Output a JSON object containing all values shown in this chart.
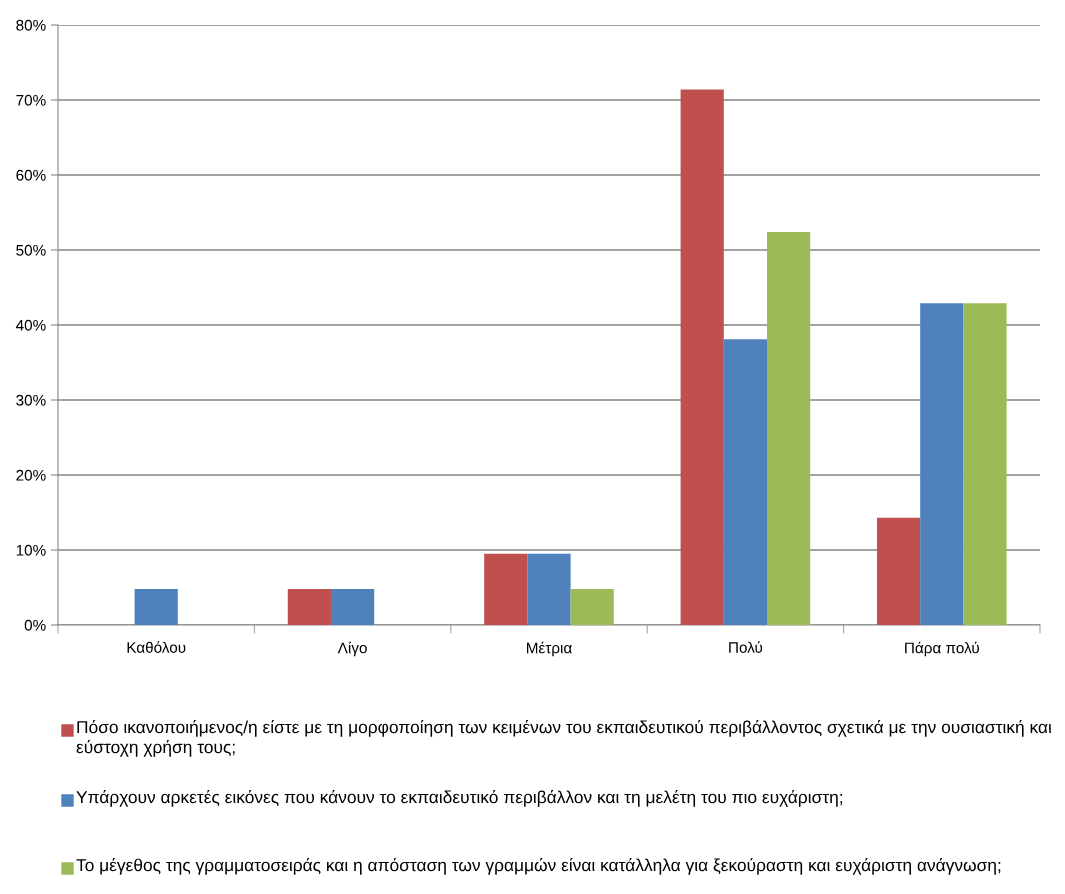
{
  "chart_data": {
    "type": "bar",
    "categories": [
      "Καθόλου",
      "Λίγο",
      "Μέτρια",
      "Πολύ",
      "Πάρα πολύ"
    ],
    "series": [
      {
        "name": "Πόσο ικανοποιήμενος/η είστε με τη μορφοποίηση των κειμένων του εκπαιδευτικού περιβάλλοντος σχετικά με την ουσιαστική και εύστοχη χρήση τους;",
        "color": "#c0504d",
        "values": [
          0,
          4.8,
          9.5,
          71.4,
          14.3
        ]
      },
      {
        "name": "Υπάρχουν αρκετές εικόνες που κάνουν το εκπαιδευτικό περιβάλλον και τη μελέτη του πιο ευχάριστη;",
        "color": "#4f81bd",
        "values": [
          4.8,
          4.8,
          9.5,
          38.1,
          42.9
        ]
      },
      {
        "name": "Το μέγεθος της γραμματοσειράς και η απόσταση των γραμμών είναι κατάλληλα για ξεκούραστη και ευχάριστη ανάγνωση;",
        "color": "#9bbb59",
        "values": [
          0,
          0,
          4.8,
          52.4,
          42.9
        ]
      }
    ],
    "ylim": [
      0,
      80
    ],
    "yticks": [
      {
        "value": 0,
        "label": "0%"
      },
      {
        "value": 10,
        "label": "10%"
      },
      {
        "value": 20,
        "label": "20%"
      },
      {
        "value": 30,
        "label": "30%"
      },
      {
        "value": 40,
        "label": "40%"
      },
      {
        "value": 50,
        "label": "50%"
      },
      {
        "value": 60,
        "label": "60%"
      },
      {
        "value": 70,
        "label": "70%"
      },
      {
        "value": 80,
        "label": "80%"
      }
    ],
    "grid": "y",
    "legend": "bottom"
  }
}
